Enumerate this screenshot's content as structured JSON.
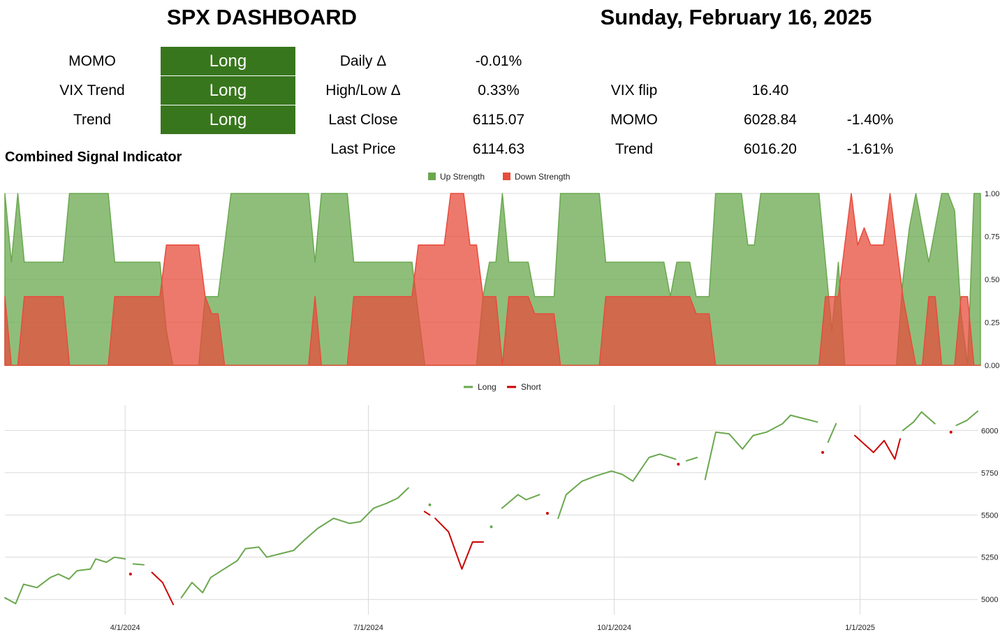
{
  "header": {
    "title": "SPX DASHBOARD",
    "date": "Sunday, February 16, 2025"
  },
  "signals": [
    {
      "label": "MOMO",
      "value": "Long",
      "color": "#38761d"
    },
    {
      "label": "VIX Trend",
      "value": "Long",
      "color": "#38761d"
    },
    {
      "label": "Trend",
      "value": "Long",
      "color": "#38761d"
    }
  ],
  "stats": [
    {
      "label": "Daily Δ",
      "value": "-0.01%"
    },
    {
      "label": "High/Low Δ",
      "value": "0.33%"
    },
    {
      "label": "Last Close",
      "value": "6115.07"
    },
    {
      "label": "Last Price",
      "value": "6114.63"
    }
  ],
  "levels": [
    {
      "label": "VIX flip",
      "value": "16.40",
      "pct": ""
    },
    {
      "label": "MOMO",
      "value": "6028.84",
      "pct": "-1.40%"
    },
    {
      "label": "Trend",
      "value": "6016.20",
      "pct": "-1.61%"
    }
  ],
  "section_title": "Combined Signal Indicator",
  "chart_data": [
    {
      "type": "area",
      "legend": [
        {
          "name": "Up Strength",
          "color": "#6aa84f"
        },
        {
          "name": "Down Strength",
          "color": "#e74c3c"
        }
      ],
      "legend_position": "top",
      "y_axis_position": "right",
      "ylim": [
        0,
        1
      ],
      "yticks": [
        "1.00",
        "0.75",
        "0.50",
        "0.25",
        "0.00"
      ],
      "series": [
        {
          "name": "Up Strength",
          "values": [
            1.0,
            0.6,
            1.0,
            0.6,
            0.6,
            0.6,
            0.6,
            0.6,
            0.6,
            0.6,
            1.0,
            1.0,
            1.0,
            1.0,
            1.0,
            1.0,
            1.0,
            0.6,
            0.6,
            0.6,
            0.6,
            0.6,
            0.6,
            0.6,
            0.6,
            0.2,
            0.0,
            0.0,
            0.0,
            0.0,
            0.0,
            0.4,
            0.4,
            0.4,
            0.7,
            1.0,
            1.0,
            1.0,
            1.0,
            1.0,
            1.0,
            1.0,
            1.0,
            1.0,
            1.0,
            1.0,
            1.0,
            1.0,
            0.6,
            1.0,
            1.0,
            1.0,
            1.0,
            1.0,
            0.6,
            0.6,
            0.6,
            0.6,
            0.6,
            0.6,
            0.6,
            0.6,
            0.6,
            0.6,
            0.3,
            0.0,
            0.0,
            0.0,
            0.0,
            0.0,
            0.0,
            0.0,
            0.0,
            0.0,
            0.4,
            0.6,
            0.6,
            1.0,
            0.6,
            0.6,
            0.6,
            0.6,
            0.4,
            0.4,
            0.4,
            0.4,
            1.0,
            1.0,
            1.0,
            1.0,
            1.0,
            1.0,
            1.0,
            0.6,
            0.6,
            0.6,
            0.6,
            0.6,
            0.6,
            0.6,
            0.6,
            0.6,
            0.6,
            0.4,
            0.6,
            0.6,
            0.6,
            0.4,
            0.4,
            0.4,
            1.0,
            1.0,
            1.0,
            1.0,
            1.0,
            0.7,
            0.7,
            1.0,
            1.0,
            1.0,
            1.0,
            1.0,
            1.0,
            1.0,
            1.0,
            1.0,
            1.0,
            0.6,
            0.2,
            0.6,
            0.0,
            0.0,
            0.0,
            0.0,
            0.0,
            0.0,
            0.0,
            0.0,
            0.0,
            0.5,
            0.8,
            1.0,
            0.8,
            0.6,
            0.8,
            1.0,
            1.0,
            0.9,
            0.3,
            0.0,
            1.0,
            1.0
          ]
        },
        {
          "name": "Down Strength",
          "values": [
            0.4,
            0.0,
            0.0,
            0.4,
            0.4,
            0.4,
            0.4,
            0.4,
            0.4,
            0.4,
            0.0,
            0.0,
            0.0,
            0.0,
            0.0,
            0.0,
            0.0,
            0.4,
            0.4,
            0.4,
            0.4,
            0.4,
            0.4,
            0.4,
            0.4,
            0.7,
            0.7,
            0.7,
            0.7,
            0.7,
            0.7,
            0.4,
            0.3,
            0.3,
            0.0,
            0.0,
            0.0,
            0.0,
            0.0,
            0.0,
            0.0,
            0.0,
            0.0,
            0.0,
            0.0,
            0.0,
            0.0,
            0.0,
            0.4,
            0.0,
            0.0,
            0.0,
            0.0,
            0.0,
            0.4,
            0.4,
            0.4,
            0.4,
            0.4,
            0.4,
            0.4,
            0.4,
            0.4,
            0.4,
            0.7,
            0.7,
            0.7,
            0.7,
            0.7,
            1.0,
            1.0,
            1.0,
            0.7,
            0.7,
            0.4,
            0.4,
            0.4,
            0.0,
            0.4,
            0.4,
            0.4,
            0.4,
            0.3,
            0.3,
            0.3,
            0.3,
            0.0,
            0.0,
            0.0,
            0.0,
            0.0,
            0.0,
            0.0,
            0.4,
            0.4,
            0.4,
            0.4,
            0.4,
            0.4,
            0.4,
            0.4,
            0.4,
            0.4,
            0.4,
            0.4,
            0.4,
            0.4,
            0.3,
            0.3,
            0.3,
            0.0,
            0.0,
            0.0,
            0.0,
            0.0,
            0.0,
            0.0,
            0.0,
            0.0,
            0.0,
            0.0,
            0.0,
            0.0,
            0.0,
            0.0,
            0.0,
            0.0,
            0.4,
            0.4,
            0.4,
            0.7,
            1.0,
            0.7,
            0.8,
            0.7,
            0.7,
            0.7,
            1.0,
            0.7,
            0.4,
            0.2,
            0.0,
            0.0,
            0.4,
            0.4,
            0.0,
            0.0,
            0.0,
            0.4,
            0.4,
            0.0,
            0.0
          ]
        }
      ]
    },
    {
      "type": "line",
      "legend": [
        {
          "name": "Long",
          "color": "#6aa84f"
        },
        {
          "name": "Short",
          "color": "#cc0000"
        }
      ],
      "legend_position": "top",
      "y_axis_position": "right",
      "ylim": [
        4910,
        6150
      ],
      "yticks": [
        5000,
        5250,
        5500,
        5750,
        6000
      ],
      "xticks": [
        {
          "label": "4/1/2024",
          "x": "2024-04-01"
        },
        {
          "label": "7/1/2024",
          "x": "2024-07-01"
        },
        {
          "label": "10/1/2024",
          "x": "2024-10-01"
        },
        {
          "label": "1/1/2025",
          "x": "2025-01-01"
        }
      ],
      "xlim": [
        "2024-02-16",
        "2025-02-14"
      ],
      "series": [
        {
          "name": "Long",
          "segments": [
            [
              [
                "2024-02-16",
                5010
              ],
              [
                "2024-02-20",
                4975
              ],
              [
                "2024-02-23",
                5090
              ],
              [
                "2024-02-28",
                5070
              ],
              [
                "2024-03-04",
                5130
              ],
              [
                "2024-03-07",
                5150
              ],
              [
                "2024-03-11",
                5120
              ],
              [
                "2024-03-14",
                5170
              ],
              [
                "2024-03-19",
                5180
              ],
              [
                "2024-03-21",
                5240
              ],
              [
                "2024-03-25",
                5220
              ],
              [
                "2024-03-28",
                5250
              ],
              [
                "2024-04-01",
                5240
              ]
            ],
            [
              [
                "2024-04-04",
                5210
              ],
              [
                "2024-04-08",
                5205
              ]
            ],
            [
              [
                "2024-04-22",
                5010
              ],
              [
                "2024-04-26",
                5100
              ],
              [
                "2024-04-30",
                5040
              ],
              [
                "2024-05-03",
                5130
              ],
              [
                "2024-05-08",
                5180
              ],
              [
                "2024-05-13",
                5230
              ],
              [
                "2024-05-16",
                5300
              ],
              [
                "2024-05-21",
                5310
              ],
              [
                "2024-05-24",
                5250
              ],
              [
                "2024-05-29",
                5270
              ],
              [
                "2024-06-03",
                5290
              ],
              [
                "2024-06-07",
                5350
              ],
              [
                "2024-06-12",
                5420
              ],
              [
                "2024-06-18",
                5480
              ],
              [
                "2024-06-24",
                5450
              ],
              [
                "2024-06-28",
                5460
              ],
              [
                "2024-07-03",
                5540
              ],
              [
                "2024-07-08",
                5570
              ],
              [
                "2024-07-12",
                5600
              ],
              [
                "2024-07-16",
                5660
              ]
            ],
            [
              [
                "2024-07-24",
                5560
              ]
            ],
            [
              [
                "2024-08-16",
                5430
              ]
            ],
            [
              [
                "2024-08-20",
                5540
              ],
              [
                "2024-08-26",
                5620
              ],
              [
                "2024-08-29",
                5590
              ],
              [
                "2024-09-03",
                5620
              ]
            ],
            [
              [
                "2024-09-10",
                5480
              ],
              [
                "2024-09-13",
                5620
              ],
              [
                "2024-09-19",
                5700
              ],
              [
                "2024-09-24",
                5730
              ],
              [
                "2024-09-30",
                5760
              ],
              [
                "2024-10-04",
                5740
              ],
              [
                "2024-10-08",
                5700
              ],
              [
                "2024-10-14",
                5840
              ],
              [
                "2024-10-18",
                5860
              ],
              [
                "2024-10-24",
                5830
              ]
            ],
            [
              [
                "2024-10-28",
                5820
              ],
              [
                "2024-11-01",
                5840
              ]
            ],
            [
              [
                "2024-11-04",
                5710
              ],
              [
                "2024-11-08",
                5990
              ],
              [
                "2024-11-13",
                5980
              ],
              [
                "2024-11-18",
                5890
              ],
              [
                "2024-11-22",
                5970
              ],
              [
                "2024-11-27",
                5990
              ],
              [
                "2024-12-03",
                6040
              ],
              [
                "2024-12-06",
                6090
              ],
              [
                "2024-12-11",
                6070
              ],
              [
                "2024-12-16",
                6050
              ]
            ],
            [
              [
                "2024-12-20",
                5930
              ],
              [
                "2024-12-23",
                6040
              ]
            ],
            [
              [
                "2025-01-17",
                6000
              ],
              [
                "2025-01-21",
                6050
              ],
              [
                "2025-01-24",
                6110
              ],
              [
                "2025-01-29",
                6040
              ]
            ],
            [
              [
                "2025-02-06",
                6030
              ],
              [
                "2025-02-10",
                6060
              ],
              [
                "2025-02-14",
                6114
              ]
            ]
          ]
        },
        {
          "name": "Short",
          "segments": [
            [
              [
                "2024-04-03",
                5150
              ]
            ],
            [
              [
                "2024-04-11",
                5160
              ],
              [
                "2024-04-15",
                5100
              ],
              [
                "2024-04-19",
                4970
              ]
            ],
            [
              [
                "2024-07-22",
                5520
              ],
              [
                "2024-07-24",
                5500
              ]
            ],
            [
              [
                "2024-07-26",
                5480
              ],
              [
                "2024-07-31",
                5400
              ],
              [
                "2024-08-05",
                5180
              ],
              [
                "2024-08-09",
                5340
              ],
              [
                "2024-08-13",
                5340
              ]
            ],
            [
              [
                "2024-09-06",
                5510
              ]
            ],
            [
              [
                "2024-10-25",
                5800
              ]
            ],
            [
              [
                "2024-12-18",
                5870
              ]
            ],
            [
              [
                "2024-12-30",
                5970
              ],
              [
                "2025-01-06",
                5870
              ],
              [
                "2025-01-10",
                5940
              ],
              [
                "2025-01-14",
                5830
              ],
              [
                "2025-01-16",
                5950
              ]
            ],
            [
              [
                "2025-02-04",
                5990
              ]
            ]
          ]
        }
      ]
    }
  ]
}
